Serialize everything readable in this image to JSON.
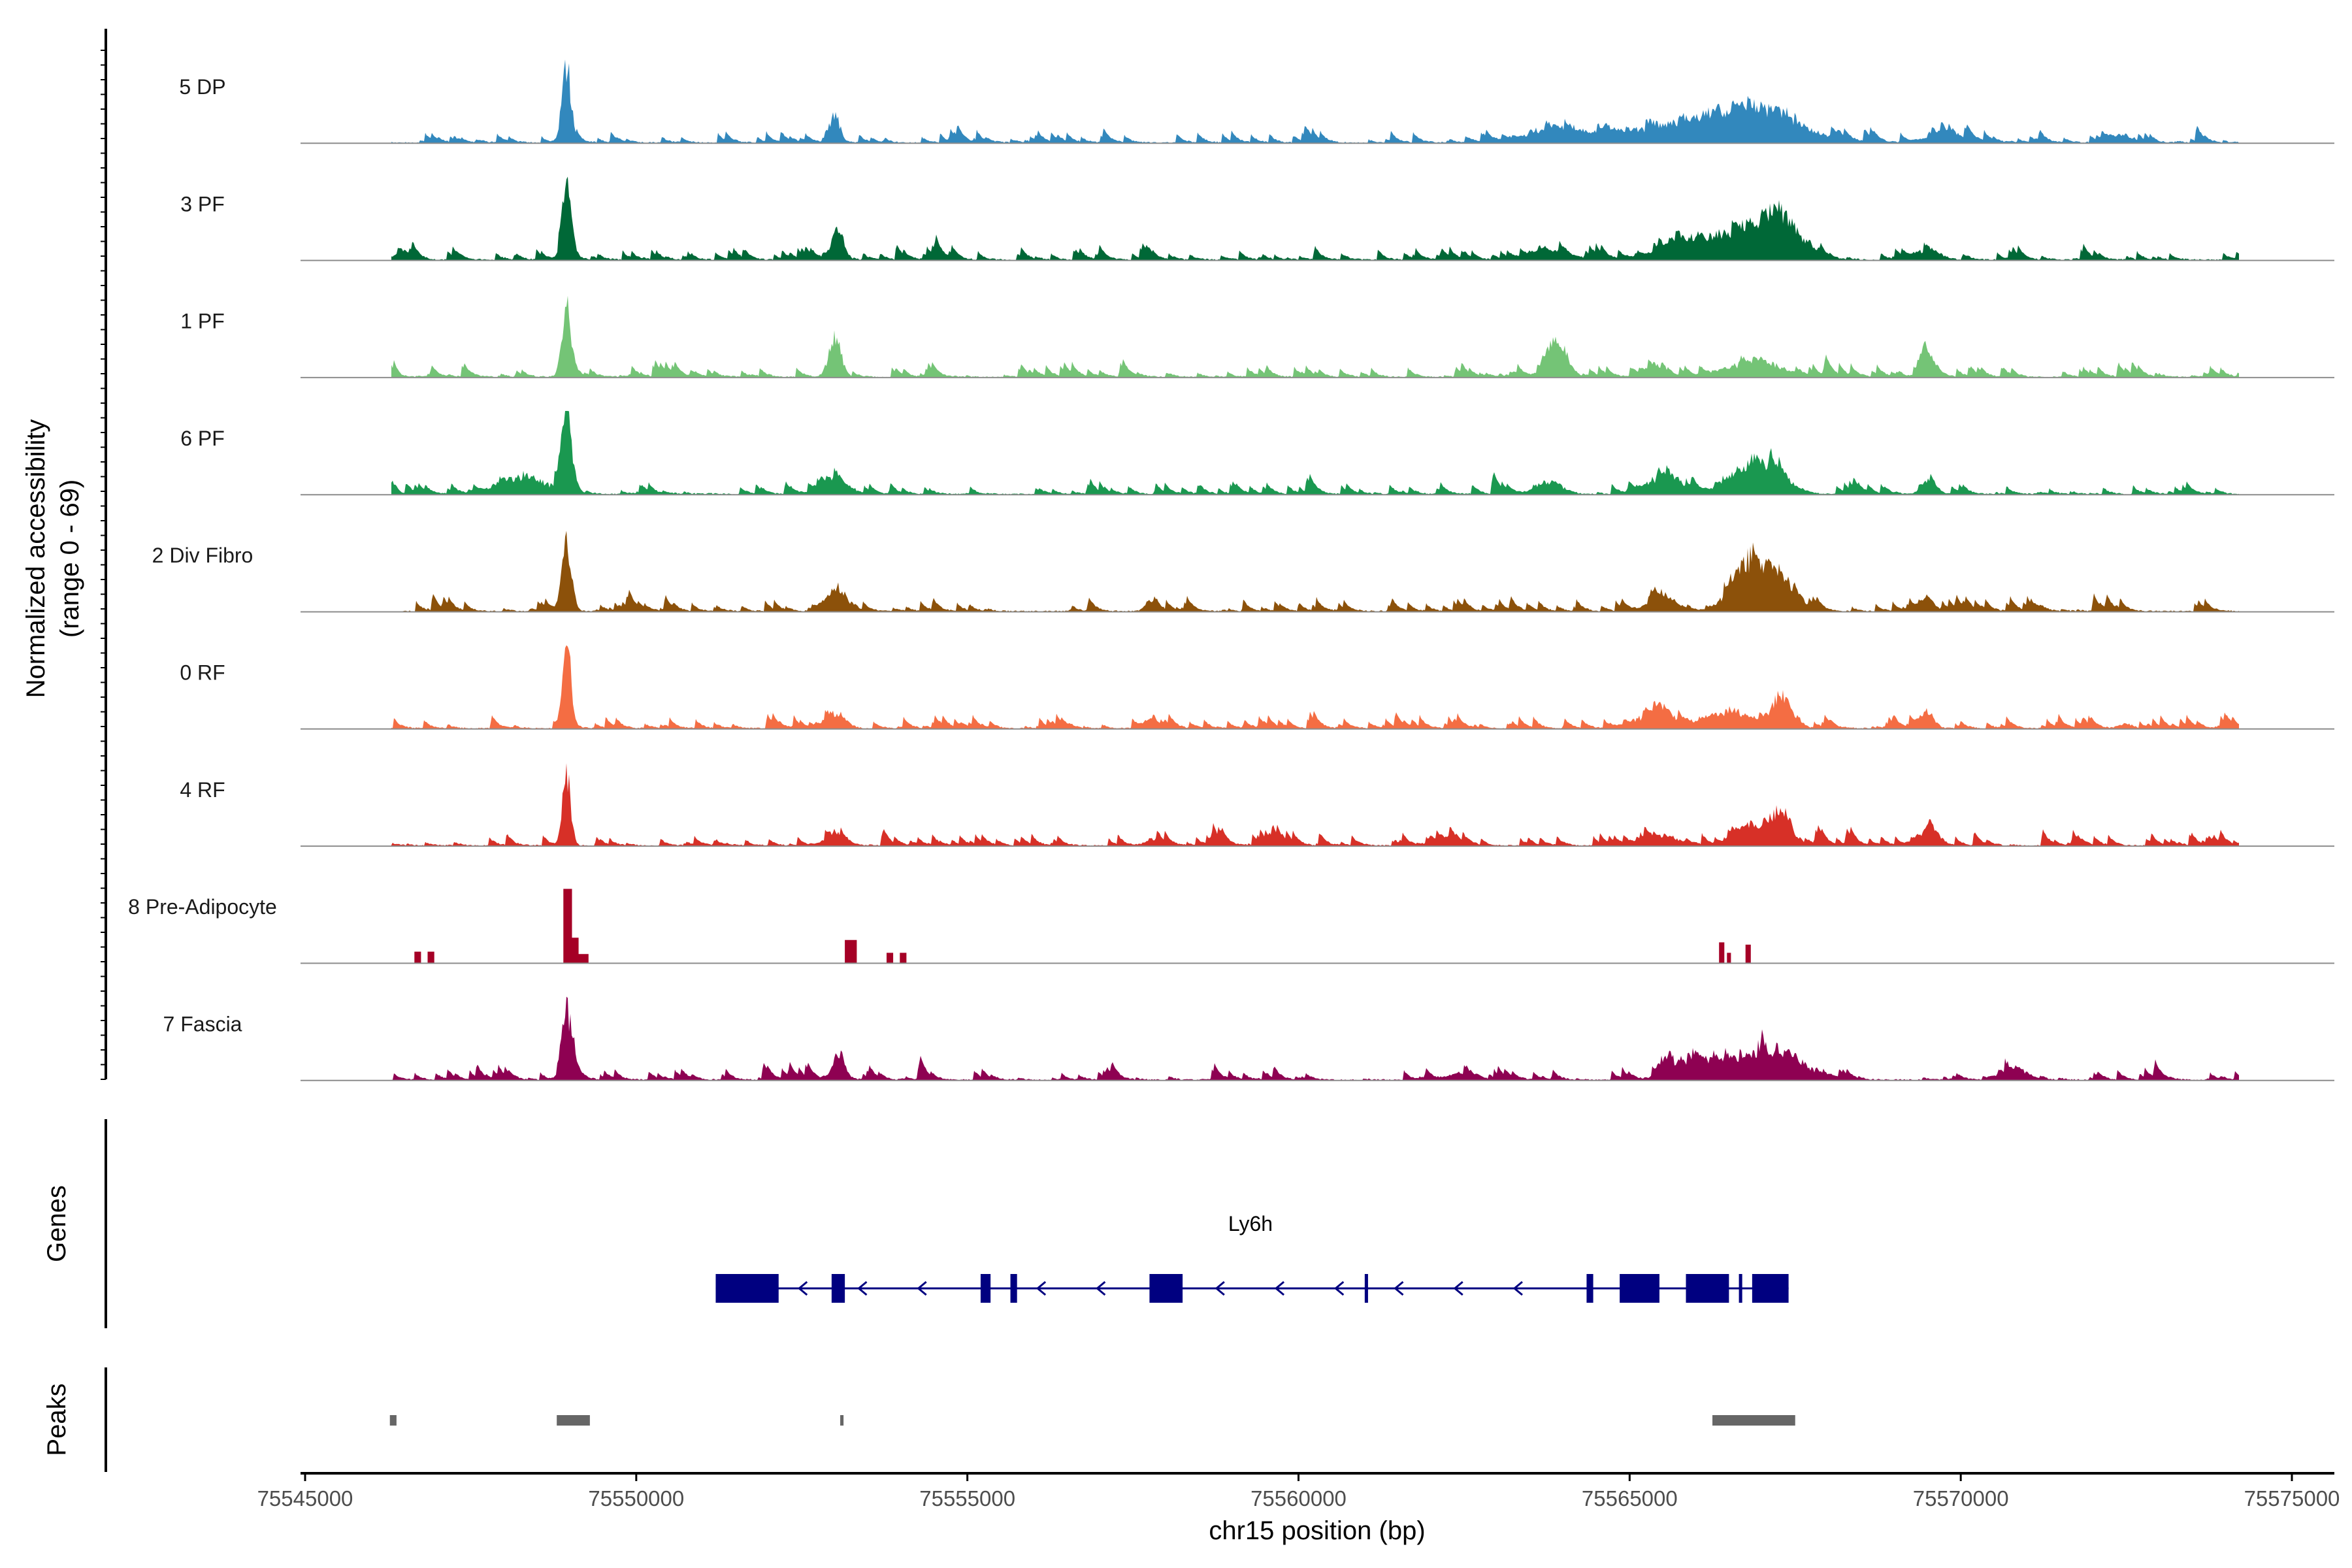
{
  "chart_data": {
    "type": "area",
    "title": "",
    "ylabel_line1": "Normalized accessibility",
    "ylabel_line2": "(range 0 - 69)",
    "yrange": [
      0,
      69
    ],
    "xlabel": "chr15 position (bp)",
    "xlim": [
      75545000,
      75575000
    ],
    "xticks": [
      "75545000",
      "75550000",
      "75555000",
      "75560000",
      "75565000",
      "75570000",
      "75575000"
    ],
    "xtick_values": [
      75545000,
      75550000,
      75555000,
      75560000,
      75565000,
      75570000,
      75575000
    ],
    "data_span": [
      75546300,
      75574200
    ],
    "tracks": [
      {
        "name": "5 DP",
        "color": "#3288bd",
        "peaks": [
          [
            75548950,
            62,
            70
          ],
          [
            75553000,
            22,
            70
          ],
          [
            75566200,
            16,
            500
          ],
          [
            75566900,
            18,
            400
          ],
          [
            75565000,
            10,
            900
          ],
          [
            75567500,
            9,
            500
          ],
          [
            75563800,
            6,
            400
          ],
          [
            75569800,
            6,
            300
          ],
          [
            75572400,
            6,
            200
          ]
        ]
      },
      {
        "name": "3 PF",
        "color": "#006837",
        "peaks": [
          [
            75548950,
            55,
            70
          ],
          [
            75553050,
            22,
            90
          ],
          [
            75567300,
            30,
            250
          ],
          [
            75566800,
            20,
            400
          ],
          [
            75566000,
            13,
            500
          ],
          [
            75563800,
            7,
            300
          ],
          [
            75546500,
            6,
            150
          ],
          [
            75569500,
            7,
            200
          ]
        ]
      },
      {
        "name": "1 PF",
        "color": "#74c476",
        "peaks": [
          [
            75548950,
            58,
            70
          ],
          [
            75553000,
            34,
            90
          ],
          [
            75563900,
            30,
            150
          ],
          [
            75566900,
            13,
            400
          ],
          [
            75569500,
            13,
            100
          ],
          [
            75546300,
            10,
            70
          ],
          [
            75565400,
            8,
            150
          ]
        ]
      },
      {
        "name": "6 PF",
        "color": "#1a9850",
        "peaks": [
          [
            75548950,
            62,
            80
          ],
          [
            75548300,
            14,
            350
          ],
          [
            75566900,
            26,
            350
          ],
          [
            75565500,
            14,
            250
          ],
          [
            75553000,
            12,
            200
          ],
          [
            75546300,
            10,
            80
          ],
          [
            75569500,
            9,
            100
          ],
          [
            75563800,
            10,
            200
          ]
        ]
      },
      {
        "name": "2 Div Fibro",
        "color": "#8c510a",
        "peaks": [
          [
            75548950,
            55,
            70
          ],
          [
            75566800,
            42,
            250
          ],
          [
            75567300,
            25,
            200
          ],
          [
            75565500,
            12,
            200
          ],
          [
            75553000,
            15,
            150
          ],
          [
            75557800,
            9,
            100
          ],
          [
            75569500,
            10,
            100
          ]
        ]
      },
      {
        "name": "0 RF",
        "color": "#f46d43",
        "peaks": [
          [
            75548950,
            72,
            60
          ],
          [
            75567300,
            27,
            150
          ],
          [
            75566500,
            14,
            300
          ],
          [
            75565400,
            12,
            300
          ],
          [
            75569500,
            14,
            100
          ],
          [
            75553000,
            10,
            150
          ],
          [
            75557800,
            9,
            100
          ],
          [
            75572500,
            4,
            100
          ]
        ]
      },
      {
        "name": "4 RF",
        "color": "#d73027",
        "peaks": [
          [
            75548950,
            62,
            60
          ],
          [
            75567300,
            25,
            150
          ],
          [
            75566900,
            16,
            250
          ],
          [
            75569500,
            12,
            150
          ],
          [
            75562300,
            6,
            200
          ],
          [
            75553000,
            8,
            150
          ],
          [
            75557800,
            6,
            100
          ],
          [
            75565500,
            6,
            300
          ]
        ]
      },
      {
        "name": "8 Pre-Adipocyte",
        "color": "#a50026",
        "blocks": [
          [
            75546650,
            75546750,
            10
          ],
          [
            75546850,
            75546950,
            10
          ],
          [
            75548900,
            75549030,
            64
          ],
          [
            75549030,
            75549130,
            22
          ],
          [
            75549130,
            75549280,
            8
          ],
          [
            75553150,
            75553330,
            20
          ],
          [
            75553780,
            75553880,
            9
          ],
          [
            75553980,
            75554080,
            9
          ],
          [
            75566350,
            75566430,
            18
          ],
          [
            75566470,
            75566530,
            9
          ],
          [
            75566750,
            75566830,
            16
          ]
        ]
      },
      {
        "name": "7 Fascia",
        "color": "#8e0152",
        "peaks": [
          [
            75548950,
            60,
            70
          ],
          [
            75553050,
            20,
            80
          ],
          [
            75565550,
            16,
            100
          ],
          [
            75566800,
            14,
            600
          ],
          [
            75566000,
            10,
            300
          ],
          [
            75567400,
            10,
            300
          ],
          [
            75570800,
            9,
            200
          ],
          [
            75562500,
            6,
            200
          ]
        ]
      }
    ],
    "genes": {
      "label": "Genes",
      "name": "Ly6h",
      "color": "#000080",
      "start": 75551200,
      "end": 75567400,
      "strand": "-",
      "exons": [
        [
          75551200,
          75552150
        ],
        [
          75552950,
          75553150
        ],
        [
          75555200,
          75555350
        ],
        [
          75555650,
          75555750
        ],
        [
          75557750,
          75558250
        ],
        [
          75561000,
          75561050
        ],
        [
          75564350,
          75564450
        ],
        [
          75564850,
          75565450
        ],
        [
          75565850,
          75566500
        ],
        [
          75566650,
          75566700
        ],
        [
          75566850,
          75567400
        ]
      ]
    },
    "peaks_track": {
      "label": "Peaks",
      "color": "#666666",
      "regions": [
        [
          75546280,
          75546380
        ],
        [
          75548800,
          75549300
        ],
        [
          75553080,
          75553130
        ],
        [
          75566250,
          75567500
        ]
      ]
    }
  }
}
